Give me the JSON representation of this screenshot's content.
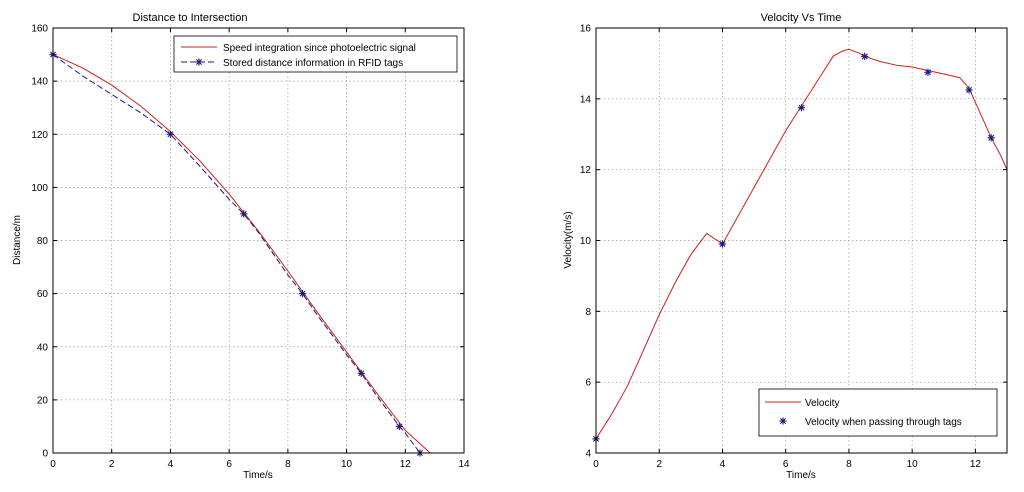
{
  "chart_data": [
    {
      "type": "line",
      "title": "Distance to Intersection",
      "xlabel": "Time/s",
      "ylabel": "Distance/m",
      "xlim": [
        0,
        14
      ],
      "ylim": [
        0,
        160
      ],
      "xticks": [
        0,
        2,
        4,
        6,
        8,
        10,
        12,
        14
      ],
      "yticks": [
        0,
        20,
        40,
        60,
        80,
        100,
        120,
        140,
        160
      ],
      "grid": true,
      "legend": "top-right",
      "series": [
        {
          "name": "Speed integration since photoelectric signal",
          "color": "#cc2222",
          "style": "solid",
          "marker": "none",
          "x": [
            0,
            1,
            2,
            3,
            4,
            5,
            6,
            7,
            8,
            9,
            10,
            11,
            12,
            12.85
          ],
          "y": [
            150,
            145,
            138.5,
            130.5,
            121,
            110,
            97.5,
            83.5,
            68.5,
            53,
            38,
            23,
            8.5,
            0
          ]
        },
        {
          "name": "Stored distance information in RFID tags",
          "color": "#1a1a80",
          "style": "dashed",
          "marker": "star",
          "x": [
            0,
            1,
            2,
            3,
            4,
            5,
            6,
            6.5,
            7,
            8,
            8.5,
            9,
            10,
            10.5,
            11,
            11.8,
            12,
            12.5
          ],
          "y": [
            150,
            142,
            135,
            128,
            120,
            108,
            95.5,
            90,
            83,
            67,
            60,
            52,
            37,
            30,
            22,
            10,
            7.5,
            0
          ],
          "markers_x": [
            0,
            4,
            6.5,
            8.5,
            10.5,
            11.8,
            12.5
          ],
          "markers_y": [
            150,
            120,
            90,
            60,
            30,
            10,
            0
          ]
        }
      ]
    },
    {
      "type": "line",
      "title": "Velocity Vs Time",
      "xlabel": "Time/s",
      "ylabel": "Velocity(m/s)",
      "xlim": [
        0,
        13
      ],
      "ylim": [
        4,
        16
      ],
      "xticks": [
        0,
        2,
        4,
        6,
        8,
        10,
        12
      ],
      "yticks": [
        4,
        6,
        8,
        10,
        12,
        14,
        16
      ],
      "grid": true,
      "legend": "bottom-right",
      "series": [
        {
          "name": "Velocity",
          "color": "#cc2222",
          "style": "solid",
          "marker": "none",
          "x": [
            0,
            0.5,
            1,
            1.5,
            2,
            2.5,
            3,
            3.5,
            4,
            4.5,
            5,
            5.5,
            6,
            6.5,
            7,
            7.5,
            7.8,
            8,
            8.3,
            8.5,
            9,
            9.5,
            10,
            10.5,
            11,
            11.5,
            11.8,
            12,
            12.3,
            12.5,
            12.8,
            13
          ],
          "y": [
            4.4,
            5.1,
            5.9,
            6.9,
            7.9,
            8.8,
            9.6,
            10.2,
            9.9,
            10.7,
            11.5,
            12.3,
            13.1,
            13.8,
            14.5,
            15.2,
            15.35,
            15.4,
            15.3,
            15.2,
            15.05,
            14.95,
            14.9,
            14.8,
            14.7,
            14.6,
            14.3,
            13.9,
            13.3,
            12.9,
            12.4,
            12.0
          ]
        },
        {
          "name": "Velocity when passing through tags",
          "color": "#1a1a80",
          "style": "none",
          "marker": "star",
          "x": [
            0,
            4,
            6.5,
            8.5,
            10.5,
            11.8,
            12.5
          ],
          "y": [
            4.4,
            9.9,
            13.75,
            15.2,
            14.75,
            14.25,
            12.9
          ]
        }
      ]
    }
  ]
}
